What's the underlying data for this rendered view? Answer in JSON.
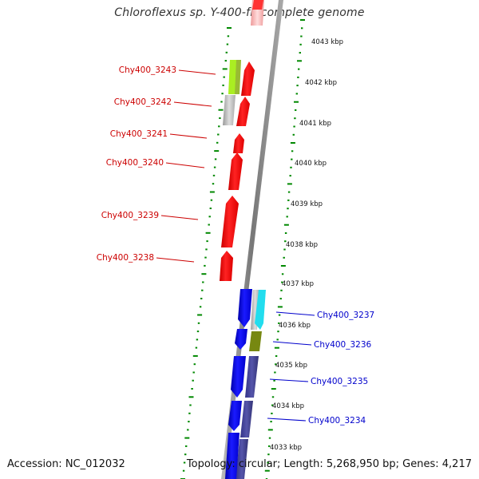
{
  "title": "Chloroflexus sp. Y-400-fl, complete genome",
  "footer": {
    "accession": "Accession: NC_012032",
    "summary": "Topology: circular; Length: 5,268,950 bp; Genes: 4,217"
  },
  "scale": {
    "unit": "kbp",
    "ticks": [
      "4043 kbp",
      "4042 kbp",
      "4041 kbp",
      "4040 kbp",
      "4039 kbp",
      "4038 kbp",
      "4037 kbp",
      "4036 kbp",
      "4035 kbp",
      "4034 kbp",
      "4033 kbp"
    ]
  },
  "genes_left": [
    {
      "label": "Chy400_3243",
      "color": "#cc0000"
    },
    {
      "label": "Chy400_3242",
      "color": "#cc0000"
    },
    {
      "label": "Chy400_3241",
      "color": "#cc0000"
    },
    {
      "label": "Chy400_3240",
      "color": "#cc0000"
    },
    {
      "label": "Chy400_3239",
      "color": "#cc0000"
    },
    {
      "label": "Chy400_3238",
      "color": "#cc0000"
    }
  ],
  "genes_right": [
    {
      "label": "Chy400_3237",
      "color": "#0000cc"
    },
    {
      "label": "Chy400_3236",
      "color": "#0000cc"
    },
    {
      "label": "Chy400_3235",
      "color": "#0000cc"
    },
    {
      "label": "Chy400_3234",
      "color": "#0000cc"
    }
  ],
  "colors": {
    "forward_strand": "#ff0000",
    "reverse_strand": "#0000ee",
    "backbone": "#888888",
    "tick_dots": "#008800",
    "lime": "#aaee22",
    "olive_green": "#99bb33",
    "gray_feature": "#bbbbbb",
    "cyan": "#22ddee",
    "olive_dark": "#778811",
    "slate_blue": "#4444aa"
  }
}
